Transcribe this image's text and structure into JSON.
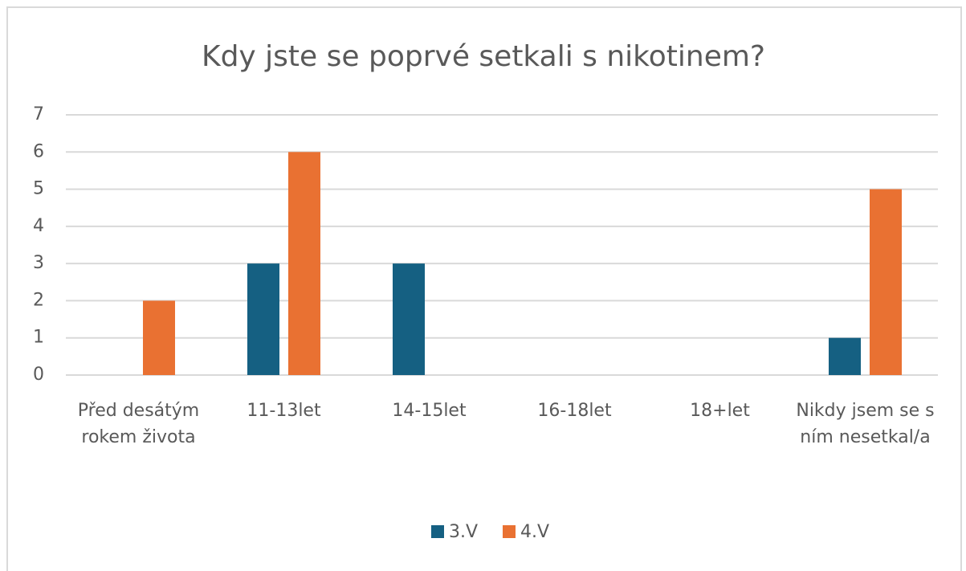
{
  "chart_data": {
    "type": "bar",
    "title": "Kdy jste se poprvé setkali s nikotinem?",
    "categories": [
      "Před desátým rokem života",
      "11-13let",
      "14-15let",
      "16-18let",
      "18+let",
      "Nikdy jsem se s ním nesetkal/a"
    ],
    "series": [
      {
        "name": "3.V",
        "color": "#156082",
        "values": [
          0,
          3,
          3,
          0,
          0,
          1
        ]
      },
      {
        "name": "4.V",
        "color": "#e97132",
        "values": [
          2,
          6,
          0,
          0,
          0,
          5
        ]
      }
    ],
    "ylim": [
      0,
      7
    ],
    "yticks": [
      0,
      1,
      2,
      3,
      4,
      5,
      6,
      7
    ],
    "grid": true,
    "legend": "bottom"
  }
}
